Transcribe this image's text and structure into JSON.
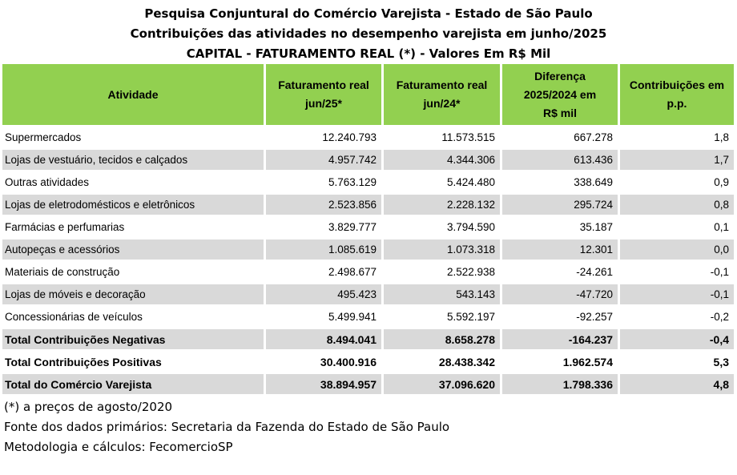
{
  "titles": [
    "Pesquisa Conjuntural do Comércio Varejista - Estado de São Paulo",
    "Contribuições das atividades no desempenho varejista em junho/2025",
    "CAPITAL - FATURAMENTO REAL (*) - Valores Em R$ Mil"
  ],
  "header": {
    "col0": "Atividade",
    "col1_line1": "Faturamento real",
    "col1_line2": "jun/25*",
    "col2_line1": "Faturamento real",
    "col2_line2": "jun/24*",
    "col3_line1": "Diferença",
    "col3_line2": "2025/2024 em",
    "col3_line3": "R$ mil",
    "col4_line1": "Contribuições em",
    "col4_line2": "p.p."
  },
  "rows": [
    {
      "atividade": "Supermercados",
      "fat25": "12.240.793",
      "fat24": "11.573.515",
      "dif": "667.278",
      "contrib": "1,8"
    },
    {
      "atividade": "Lojas de vestuário, tecidos e calçados",
      "fat25": "4.957.742",
      "fat24": "4.344.306",
      "dif": "613.436",
      "contrib": "1,7"
    },
    {
      "atividade": "Outras atividades",
      "fat25": "5.763.129",
      "fat24": "5.424.480",
      "dif": "338.649",
      "contrib": "0,9"
    },
    {
      "atividade": "Lojas de eletrodomésticos e eletrônicos",
      "fat25": "2.523.856",
      "fat24": "2.228.132",
      "dif": "295.724",
      "contrib": "0,8"
    },
    {
      "atividade": "Farmácias e perfumarias",
      "fat25": "3.829.777",
      "fat24": "3.794.590",
      "dif": "35.187",
      "contrib": "0,1"
    },
    {
      "atividade": "Autopeças e acessórios",
      "fat25": "1.085.619",
      "fat24": "1.073.318",
      "dif": "12.301",
      "contrib": "0,0"
    },
    {
      "atividade": "Materiais de construção",
      "fat25": "2.498.677",
      "fat24": "2.522.938",
      "dif": "-24.261",
      "contrib": "-0,1"
    },
    {
      "atividade": "Lojas de móveis e decoração",
      "fat25": "495.423",
      "fat24": "543.143",
      "dif": "-47.720",
      "contrib": "-0,1"
    },
    {
      "atividade": "Concessionárias de veículos",
      "fat25": "5.499.941",
      "fat24": "5.592.197",
      "dif": "-92.257",
      "contrib": "-0,2"
    },
    {
      "atividade": "Total Contribuições Negativas",
      "fat25": "8.494.041",
      "fat24": "8.658.278",
      "dif": "-164.237",
      "contrib": "-0,4"
    },
    {
      "atividade": "Total Contribuições Positivas",
      "fat25": "30.400.916",
      "fat24": "28.438.342",
      "dif": "1.962.574",
      "contrib": "5,3"
    },
    {
      "atividade": "Total do Comércio Varejista",
      "fat25": "38.894.957",
      "fat24": "37.096.620",
      "dif": "1.798.336",
      "contrib": "4,8"
    }
  ],
  "notes": [
    "(*) a preços de agosto/2020",
    "Fonte dos dados primários: Secretaria da Fazenda do Estado de São Paulo",
    "Metodologia e cálculos: FecomercioSP"
  ]
}
